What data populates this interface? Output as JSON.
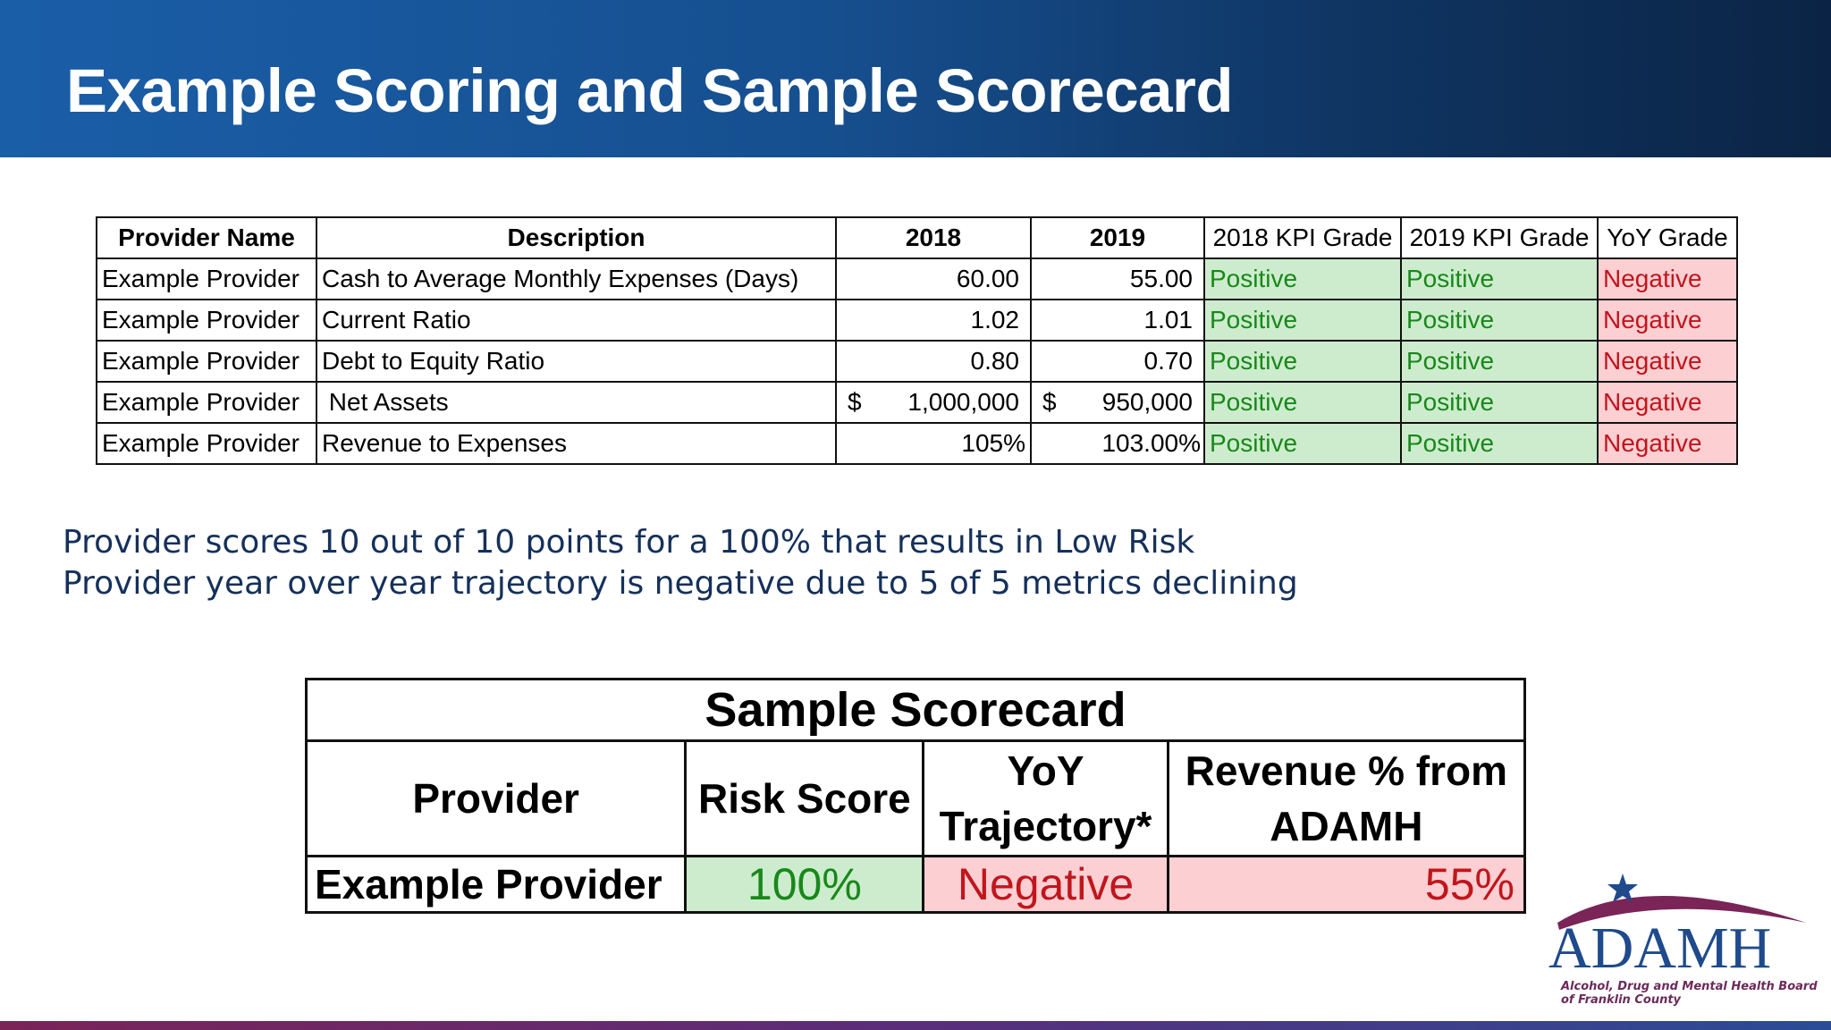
{
  "title": "Example Scoring and Sample Scorecard",
  "kpi_table": {
    "headers": [
      "Provider Name",
      "Description",
      "2018",
      "2019",
      "2018 KPI Grade",
      "2019 KPI Grade",
      "YoY Grade"
    ],
    "rows": [
      {
        "provider": "Example Provider",
        "description": "Cash to Average Monthly Expenses (Days)",
        "y2018": "60.00",
        "y2019": "55.00",
        "g2018": "Positive",
        "g2019": "Positive",
        "yoy": "Negative"
      },
      {
        "provider": "Example Provider",
        "description": "Current Ratio",
        "y2018": "1.02",
        "y2019": "1.01",
        "g2018": "Positive",
        "g2019": "Positive",
        "yoy": "Negative"
      },
      {
        "provider": "Example Provider",
        "description": "Debt to Equity Ratio",
        "y2018": "0.80",
        "y2019": "0.70",
        "g2018": "Positive",
        "g2019": "Positive",
        "yoy": "Negative"
      },
      {
        "provider": "Example Provider",
        "description": " Net Assets",
        "y2018_symbol": "$",
        "y2018": "1,000,000",
        "y2019_symbol": "$",
        "y2019": "950,000",
        "g2018": "Positive",
        "g2019": "Positive",
        "yoy": "Negative"
      },
      {
        "provider": "Example Provider",
        "description": "Revenue to Expenses",
        "y2018": "105%",
        "y2019": "103.00%",
        "g2018": "Positive",
        "g2019": "Positive",
        "yoy": "Negative"
      }
    ]
  },
  "notes": [
    "Provider scores 10 out of 10 points for a 100% that results in Low Risk",
    "Provider year over year trajectory is negative due to 5 of 5 metrics declining"
  ],
  "scorecard": {
    "title": "Sample Scorecard",
    "headers": {
      "provider": "Provider",
      "risk_score": "Risk Score",
      "yoy_line1": "YoY",
      "yoy_line2": "Trajectory*",
      "revenue_line1": "Revenue % from",
      "revenue_line2": "ADAMH"
    },
    "row": {
      "provider": "Example Provider",
      "risk_score": "100%",
      "yoy": "Negative",
      "revenue": "55%"
    }
  },
  "logo": {
    "text": "ADAMH",
    "tagline_line1": "Alcohol, Drug and Mental Health Board",
    "tagline_line2": "of Franklin County"
  },
  "colors": {
    "positive_fill": "#cdeccd",
    "positive_text": "#18881a",
    "negative_fill": "#fccfd3",
    "negative_text": "#c0161c",
    "header_blue": "#164f8f"
  }
}
